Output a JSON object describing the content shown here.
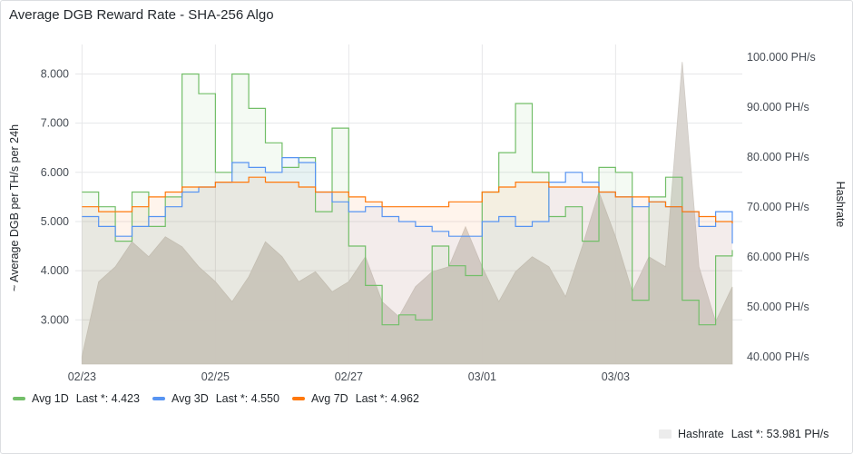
{
  "panel": {
    "title": "Average DGB Reward Rate - SHA-256 Algo"
  },
  "chart_data": {
    "type": "line",
    "title": "Average DGB Reward Rate - SHA-256 Algo",
    "ylabel": "~ Average DGB per TH/s per 24h",
    "y2label": "Hashrate",
    "ylim": [
      2.1,
      8.6
    ],
    "y2lim": [
      38.5,
      102.5
    ],
    "yticks": [
      "3.000",
      "4.000",
      "5.000",
      "6.000",
      "7.000",
      "8.000"
    ],
    "y2ticks": [
      "40.000 PH/s",
      "50.000 PH/s",
      "60.000 PH/s",
      "70.000 PH/s",
      "80.000 PH/s",
      "90.000 PH/s",
      "100.000 PH/s"
    ],
    "xlim": [
      -0.05,
      4.95
    ],
    "xticks": [
      "02/23",
      "02/25",
      "02/27",
      "03/01",
      "03/03"
    ],
    "x": [
      0.0,
      0.125,
      0.25,
      0.375,
      0.5,
      0.625,
      0.75,
      0.875,
      1.0,
      1.125,
      1.25,
      1.375,
      1.5,
      1.625,
      1.75,
      1.875,
      2.0,
      2.125,
      2.25,
      2.375,
      2.5,
      2.625,
      2.75,
      2.875,
      3.0,
      3.125,
      3.25,
      3.375,
      3.5,
      3.625,
      3.75,
      3.875,
      4.0,
      4.125,
      4.25,
      4.375,
      4.5,
      4.625,
      4.75,
      4.875
    ],
    "series": [
      {
        "name": "Avg 1D",
        "color": "#73bf69",
        "last": "4.423",
        "values": [
          5.6,
          5.3,
          4.6,
          5.6,
          4.9,
          5.5,
          8.0,
          7.6,
          6.0,
          8.0,
          7.3,
          6.6,
          6.1,
          6.3,
          5.2,
          6.9,
          4.5,
          3.7,
          2.9,
          3.1,
          3.0,
          4.5,
          4.1,
          3.9,
          5.6,
          6.4,
          7.4,
          6.0,
          5.1,
          5.3,
          4.6,
          6.1,
          6.0,
          3.4,
          5.5,
          5.9,
          3.4,
          2.9,
          4.3,
          4.42
        ]
      },
      {
        "name": "Avg 3D",
        "color": "#5794f2",
        "last": "4.550",
        "values": [
          5.1,
          4.9,
          4.7,
          4.9,
          5.1,
          5.3,
          5.6,
          5.7,
          5.8,
          6.2,
          6.1,
          6.0,
          6.3,
          6.2,
          5.6,
          5.4,
          5.2,
          5.3,
          5.1,
          5.0,
          4.9,
          4.8,
          4.7,
          4.7,
          5.0,
          5.1,
          4.9,
          5.0,
          5.8,
          6.0,
          5.8,
          5.6,
          5.5,
          5.3,
          5.4,
          5.3,
          5.2,
          4.9,
          5.2,
          4.55
        ]
      },
      {
        "name": "Avg 7D",
        "color": "#ff780a",
        "last": "4.962",
        "values": [
          5.3,
          5.2,
          5.2,
          5.3,
          5.5,
          5.6,
          5.7,
          5.7,
          5.8,
          5.8,
          5.9,
          5.8,
          5.8,
          5.7,
          5.6,
          5.6,
          5.5,
          5.4,
          5.3,
          5.3,
          5.3,
          5.3,
          5.4,
          5.4,
          5.6,
          5.7,
          5.8,
          5.8,
          5.7,
          5.7,
          5.7,
          5.6,
          5.5,
          5.5,
          5.4,
          5.3,
          5.2,
          5.1,
          5.0,
          4.96
        ]
      },
      {
        "name": "Hashrate",
        "color": "#d8d4cf",
        "last": "53.981 PH/s",
        "values": [
          40.0,
          55.0,
          58.0,
          63.0,
          60.0,
          64.0,
          62.0,
          58.0,
          55.0,
          51.0,
          56.0,
          63.0,
          60.0,
          55.0,
          57.0,
          53.0,
          55.0,
          60.0,
          51.0,
          48.0,
          54.0,
          57.0,
          58.0,
          66.0,
          58.0,
          51.0,
          57.0,
          60.0,
          58.0,
          52.0,
          62.0,
          73.0,
          64.0,
          53.0,
          60.0,
          58.0,
          99.0,
          58.0,
          47.0,
          53.98
        ]
      }
    ]
  },
  "legend": {
    "s1_label": "Avg 1D",
    "s1_stat": "Last *: 4.423",
    "s2_label": "Avg 3D",
    "s2_stat": "Last *: 4.550",
    "s3_label": "Avg 7D",
    "s3_stat": "Last *: 4.962",
    "s4_label": "Hashrate",
    "s4_stat": "Last *: 53.981 PH/s"
  }
}
